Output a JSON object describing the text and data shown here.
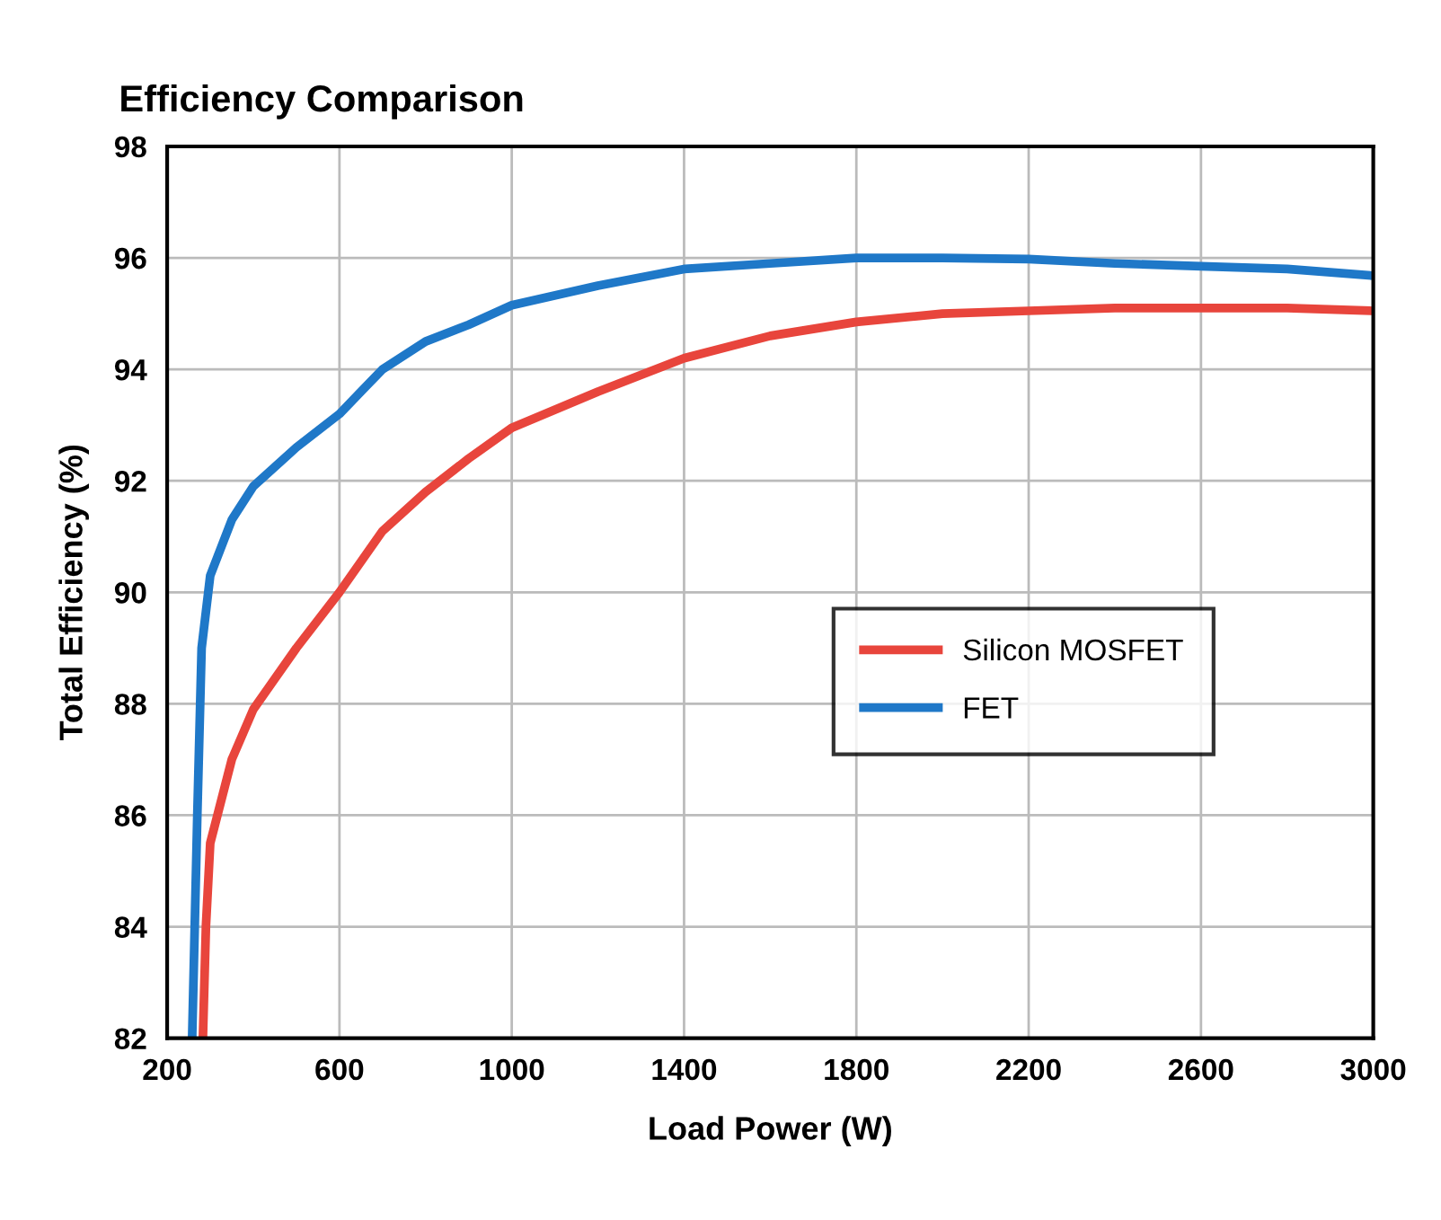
{
  "chart_data": {
    "type": "line",
    "title": "Efficiency Comparison",
    "xlabel": "Load Power (W)",
    "ylabel": "Total Efficiency (%)",
    "xlim": [
      200,
      3000
    ],
    "xticks": [
      200,
      600,
      1000,
      1400,
      1800,
      2200,
      2600,
      3000
    ],
    "ylim": [
      82,
      98
    ],
    "yticks": [
      82,
      84,
      86,
      88,
      90,
      92,
      94,
      96,
      98
    ],
    "grid": true,
    "legend": "right",
    "line_style": "solid",
    "marker": "none",
    "series": [
      {
        "name": "Silicon MOSFET",
        "color": "#e8453c",
        "x": [
          283,
          290,
          300,
          350,
          400,
          500,
          600,
          700,
          800,
          900,
          1000,
          1200,
          1400,
          1600,
          1800,
          2000,
          2200,
          2400,
          2600,
          2800,
          3000
        ],
        "values": [
          82,
          84,
          85.5,
          87,
          87.9,
          89,
          90,
          91.1,
          91.8,
          92.4,
          92.95,
          93.6,
          94.2,
          94.6,
          94.85,
          95.0,
          95.05,
          95.1,
          95.1,
          95.1,
          95.05
        ]
      },
      {
        "name": "FET",
        "color": "#1f78c8",
        "x": [
          258,
          270,
          280,
          300,
          350,
          400,
          500,
          600,
          650,
          700,
          800,
          900,
          1000,
          1200,
          1400,
          1600,
          1800,
          2000,
          2200,
          2400,
          2600,
          2800,
          3000
        ],
        "values": [
          82,
          86,
          89,
          90.3,
          91.3,
          91.9,
          92.6,
          93.2,
          93.6,
          94.0,
          94.5,
          94.8,
          95.15,
          95.5,
          95.8,
          95.9,
          96.0,
          96.0,
          95.98,
          95.9,
          95.85,
          95.8,
          95.68
        ]
      }
    ]
  }
}
